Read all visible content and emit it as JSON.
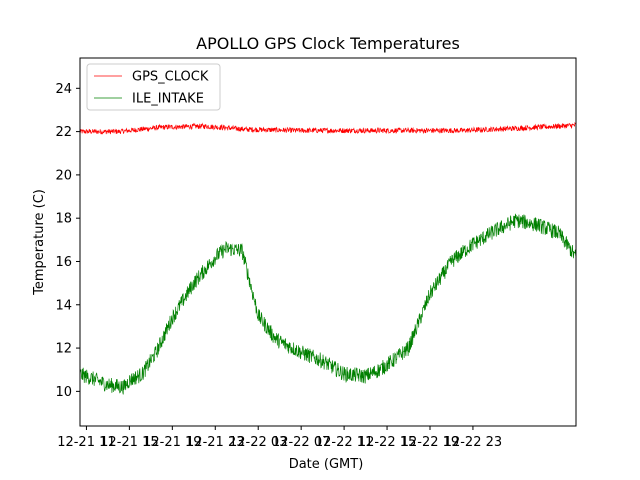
{
  "chart_data": {
    "type": "line",
    "title": "APOLLO GPS Clock Temperatures",
    "xlabel": "Date (GMT)",
    "ylabel": "Temperature (C)",
    "xlim_hours": [
      -0.6,
      45.6
    ],
    "ylim": [
      8.4,
      25.4
    ],
    "y_ticks": [
      10,
      12,
      14,
      16,
      18,
      20,
      22,
      24
    ],
    "x_ticks": [
      {
        "hour": 0,
        "label": "12-21 11"
      },
      {
        "hour": 4,
        "label": "12-21 15"
      },
      {
        "hour": 8,
        "label": "12-21 19"
      },
      {
        "hour": 12,
        "label": "12-21 23"
      },
      {
        "hour": 16,
        "label": "12-22 03"
      },
      {
        "hour": 20,
        "label": "12-22 07"
      },
      {
        "hour": 24,
        "label": "12-22 11"
      },
      {
        "hour": 28,
        "label": "12-22 15"
      },
      {
        "hour": 32,
        "label": "12-22 19"
      },
      {
        "hour": 36,
        "label": "12-22 23"
      }
    ],
    "x_tick_positions_hours": [
      0,
      4,
      8,
      12,
      16,
      20,
      24,
      28,
      32,
      36
    ],
    "grid": false,
    "legend_position": "top-left",
    "series": [
      {
        "name": "GPS_CLOCK",
        "color": "#ff0000",
        "noise": 0.12,
        "x": [
          -0.6,
          3,
          7,
          11,
          15,
          20,
          25,
          30,
          35,
          40,
          44,
          45.6
        ],
        "y": [
          22.0,
          22.0,
          22.2,
          22.25,
          22.1,
          22.05,
          22.05,
          22.05,
          22.05,
          22.15,
          22.25,
          22.3
        ]
      },
      {
        "name": "ILE_INTAKE",
        "color": "#008000",
        "noise": 0.35,
        "x": [
          -0.6,
          0.5,
          2,
          3.5,
          4,
          5.2,
          6.5,
          8,
          10,
          12,
          13,
          14.5,
          16,
          17.5,
          18,
          20,
          22,
          24,
          26,
          27.3,
          28.5,
          30,
          32,
          34,
          36,
          38,
          40,
          42,
          44,
          45.6
        ],
        "y": [
          10.8,
          10.6,
          10.3,
          10.2,
          10.5,
          10.8,
          11.8,
          13.4,
          15.0,
          16.2,
          16.6,
          16.5,
          13.5,
          12.5,
          12.3,
          11.8,
          11.4,
          10.8,
          10.7,
          11.0,
          11.4,
          12.0,
          14.5,
          16.0,
          16.8,
          17.4,
          17.9,
          17.7,
          17.3,
          16.2
        ]
      }
    ]
  }
}
